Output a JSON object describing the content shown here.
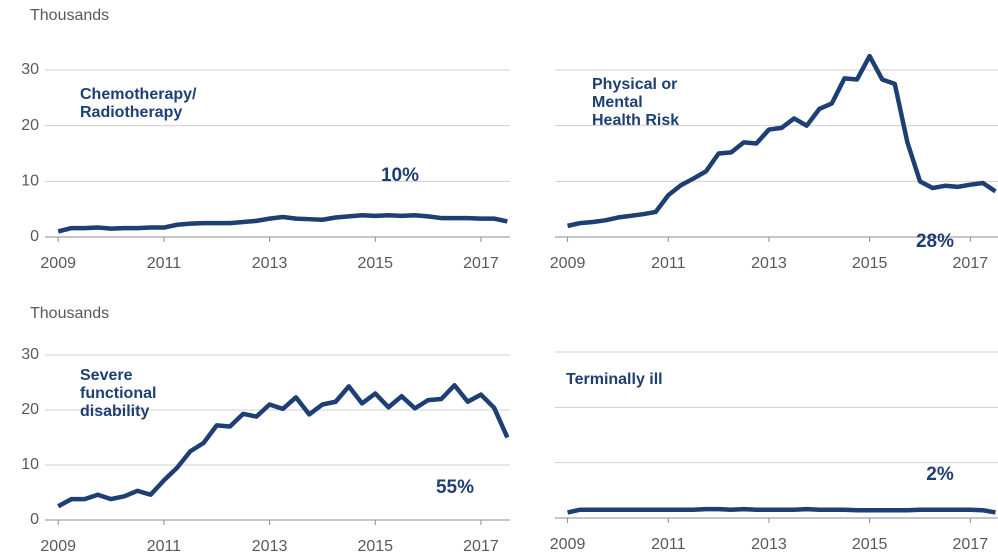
{
  "chart_data": [
    {
      "type": "line",
      "y_axis_label": "Thousands",
      "title": [
        "Chemotherapy/",
        "Radiotherapy"
      ],
      "annotation": "10%",
      "x": [
        2009,
        2009.25,
        2009.5,
        2009.75,
        2010,
        2010.25,
        2010.5,
        2010.75,
        2011,
        2011.25,
        2011.5,
        2011.75,
        2012,
        2012.25,
        2012.5,
        2012.75,
        2013,
        2013.25,
        2013.5,
        2013.75,
        2014,
        2014.25,
        2014.5,
        2014.75,
        2015,
        2015.25,
        2015.5,
        2015.75,
        2016,
        2016.25,
        2016.5,
        2016.75,
        2017,
        2017.25,
        2017.5
      ],
      "color": "#1e3f73",
      "values": [
        1,
        1.6,
        1.6,
        1.7,
        1.5,
        1.6,
        1.6,
        1.7,
        1.7,
        2.2,
        2.4,
        2.5,
        2.5,
        2.5,
        2.7,
        2.9,
        3.3,
        3.6,
        3.3,
        3.2,
        3.1,
        3.5,
        3.7,
        3.9,
        3.8,
        3.9,
        3.8,
        3.9,
        3.7,
        3.4,
        3.4,
        3.4,
        3.3,
        3.3,
        2.8
      ],
      "xlim": [
        2008.75,
        2017.55
      ],
      "xticks": [
        2009,
        2011,
        2013,
        2015,
        2017
      ],
      "ylim": [
        0,
        30
      ],
      "yticks": [
        0,
        10,
        20,
        30
      ],
      "ytick_labels": true,
      "grid": true
    },
    {
      "type": "line",
      "title": [
        "Physical or",
        "Mental",
        "Health Risk"
      ],
      "annotation": "28%",
      "x": [
        2009,
        2009.25,
        2009.5,
        2009.75,
        2010,
        2010.25,
        2010.5,
        2010.75,
        2011,
        2011.25,
        2011.5,
        2011.75,
        2012,
        2012.25,
        2012.5,
        2012.75,
        2013,
        2013.25,
        2013.5,
        2013.75,
        2014,
        2014.25,
        2014.5,
        2014.75,
        2015,
        2015.25,
        2015.5,
        2015.75,
        2016,
        2016.25,
        2016.5,
        2016.75,
        2017,
        2017.25,
        2017.5
      ],
      "color": "#1e3f73",
      "values": [
        2,
        2.5,
        2.7,
        3,
        3.5,
        3.8,
        4.1,
        4.5,
        7.5,
        9.3,
        10.5,
        11.8,
        15,
        15.2,
        17,
        16.8,
        19.3,
        19.6,
        21.3,
        20,
        23,
        24,
        28.5,
        28.3,
        32.5,
        28.3,
        27.5,
        17,
        10,
        8.8,
        9.2,
        9,
        9.4,
        9.7,
        8.2
      ],
      "xlim": [
        2008.75,
        2017.55
      ],
      "xticks": [
        2009,
        2011,
        2013,
        2015,
        2017
      ],
      "ylim": [
        0,
        30
      ],
      "yticks": [
        0,
        10,
        20,
        30
      ],
      "ytick_labels": false,
      "grid": true
    },
    {
      "type": "line",
      "y_axis_label": "Thousands",
      "title": [
        "Severe",
        "functional",
        "disability"
      ],
      "annotation": "55%",
      "x": [
        2009,
        2009.25,
        2009.5,
        2009.75,
        2010,
        2010.25,
        2010.5,
        2010.75,
        2011,
        2011.25,
        2011.5,
        2011.75,
        2012,
        2012.25,
        2012.5,
        2012.75,
        2013,
        2013.25,
        2013.5,
        2013.75,
        2014,
        2014.25,
        2014.5,
        2014.75,
        2015,
        2015.25,
        2015.5,
        2015.75,
        2016,
        2016.25,
        2016.5,
        2016.75,
        2017,
        2017.25,
        2017.5
      ],
      "color": "#1e3f73",
      "values": [
        2.5,
        3.8,
        3.8,
        4.6,
        3.8,
        4.3,
        5.3,
        4.6,
        7.2,
        9.5,
        12.5,
        14,
        17.2,
        17,
        19.3,
        18.8,
        21,
        20.2,
        22.3,
        19.2,
        21,
        21.5,
        24.3,
        21.2,
        23,
        20.5,
        22.5,
        20.3,
        21.8,
        22,
        24.5,
        21.5,
        22.8,
        20.4,
        15
      ],
      "xlim": [
        2008.75,
        2017.55
      ],
      "xticks": [
        2009,
        2011,
        2013,
        2015,
        2017
      ],
      "ylim": [
        0,
        30
      ],
      "yticks": [
        0,
        10,
        20,
        30
      ],
      "ytick_labels": true,
      "grid": true
    },
    {
      "type": "line",
      "title": [
        "Terminally ill"
      ],
      "annotation": "2%",
      "x": [
        2009,
        2009.25,
        2009.5,
        2009.75,
        2010,
        2010.25,
        2010.5,
        2010.75,
        2011,
        2011.25,
        2011.5,
        2011.75,
        2012,
        2012.25,
        2012.5,
        2012.75,
        2013,
        2013.25,
        2013.5,
        2013.75,
        2014,
        2014.25,
        2014.5,
        2014.75,
        2015,
        2015.25,
        2015.5,
        2015.75,
        2016,
        2016.25,
        2016.5,
        2016.75,
        2017,
        2017.25,
        2017.5
      ],
      "color": "#1e3f73",
      "values": [
        1,
        1.5,
        1.5,
        1.5,
        1.5,
        1.5,
        1.5,
        1.5,
        1.5,
        1.5,
        1.5,
        1.6,
        1.6,
        1.5,
        1.6,
        1.5,
        1.5,
        1.5,
        1.5,
        1.6,
        1.5,
        1.5,
        1.5,
        1.4,
        1.4,
        1.4,
        1.4,
        1.4,
        1.5,
        1.5,
        1.5,
        1.5,
        1.5,
        1.4,
        1
      ],
      "xlim": [
        2008.75,
        2017.55
      ],
      "xticks": [
        2009,
        2011,
        2013,
        2015,
        2017
      ],
      "ylim": [
        0,
        30
      ],
      "yticks": [
        0,
        10,
        20,
        30
      ],
      "ytick_labels": false,
      "grid": true
    }
  ]
}
